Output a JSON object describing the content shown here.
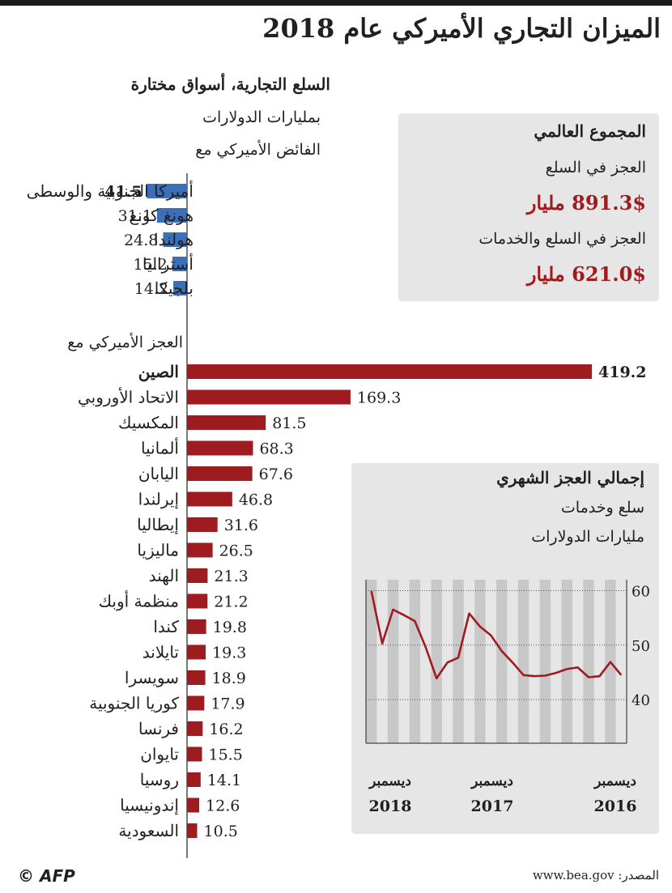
{
  "title": "الميزان التجاري الأميركي عام 2018",
  "subtitle": "السلع التجارية، أسواق مختارة",
  "units": "بمليارات الدولارات",
  "chart_data": [
    {
      "type": "bar",
      "title": "الفائض الأميركي مع",
      "categories": [
        "أميركا الجنوبية والوسطى",
        "هونغ كونغ",
        "هولندا",
        "أستراليا",
        "بلجيكا"
      ],
      "values": [
        41.5,
        31.1,
        24.8,
        15.2,
        14.2
      ],
      "labels": [
        "41.5",
        "31.1",
        "24.8",
        "15.2",
        "14.2"
      ],
      "color": "#3b6fba"
    },
    {
      "type": "bar",
      "title": "العجز الأميركي مع",
      "categories": [
        "الصين",
        "الاتحاد الأوروبي",
        "المكسيك",
        "ألمانيا",
        "اليابان",
        "إيرلندا",
        "إيطاليا",
        "ماليزيا",
        "الهند",
        "منظمة أوبك",
        "كندا",
        "تايلاند",
        "سويسرا",
        "كوريا الجنوبية",
        "فرنسا",
        "تايوان",
        "روسيا",
        "إندونيسيا",
        "السعودية"
      ],
      "values": [
        419.2,
        169.3,
        81.5,
        68.3,
        67.6,
        46.8,
        31.6,
        26.5,
        21.3,
        21.2,
        19.8,
        19.3,
        18.9,
        17.9,
        16.2,
        15.5,
        14.1,
        12.6,
        10.5
      ],
      "labels": [
        "419.2",
        "169.3",
        "81.5",
        "68.3",
        "67.6",
        "46.8",
        "31.6",
        "26.5",
        "21.3",
        "21.2",
        "19.8",
        "19.3",
        "18.9",
        "17.9",
        "16.2",
        "15.5",
        "14.1",
        "12.6",
        "10.5"
      ],
      "color": "#9e1b1f"
    },
    {
      "type": "line",
      "title": "إجمالي العجز الشهري",
      "subtitle": "سلع وخدمات",
      "units": "مليارات الدولارات",
      "x_labels": [
        {
          "month": "ديسمبر",
          "year": "2018"
        },
        {
          "month": "ديسمبر",
          "year": "2017"
        },
        {
          "month": "ديسمبر",
          "year": "2016"
        }
      ],
      "x_order": "reversed",
      "yticks": [
        40,
        50,
        60
      ],
      "ylim": [
        32,
        62
      ],
      "values": [
        59.9,
        50.3,
        56.5,
        55.5,
        54.4,
        49.6,
        43.9,
        46.8,
        47.7,
        55.8,
        53.4,
        51.8,
        48.9,
        46.8,
        44.5,
        44.3,
        44.4,
        44.9,
        45.6,
        45.9,
        44.1,
        44.3,
        46.9,
        44.5
      ],
      "color": "#9e1b1f",
      "grid": true
    }
  ],
  "summary": {
    "heading": "المجموع العالمي",
    "goods_label": "العجز في السلع",
    "goods_value": "891.3$ مليار",
    "goods_services_label": "العجز في السلع والخدمات",
    "goods_services_value": "621.0$ مليار"
  },
  "source": "المصدر: www.bea.gov",
  "credit": "© AFP"
}
